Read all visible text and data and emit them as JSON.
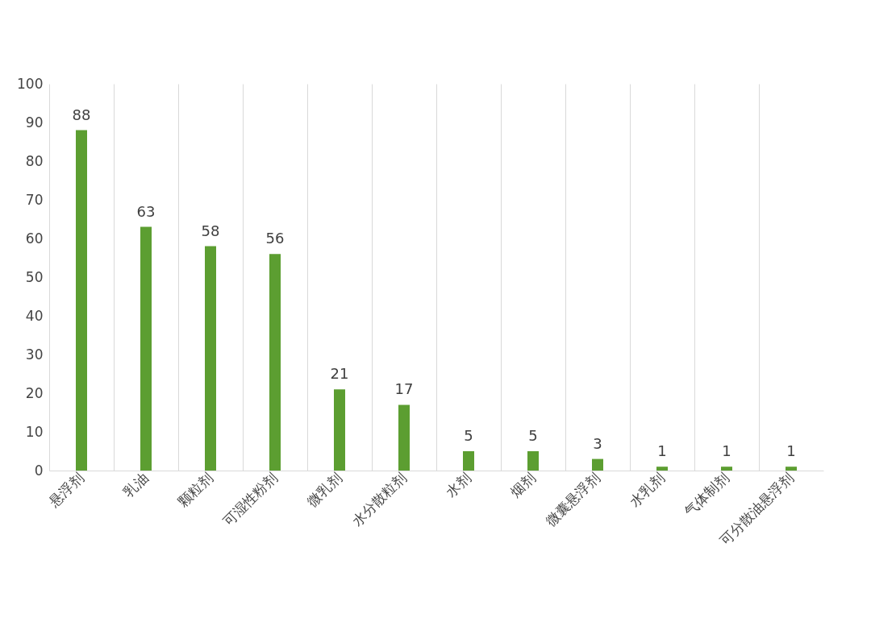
{
  "chart_data": {
    "type": "bar",
    "categories": [
      "悬浮剂",
      "乳油",
      "颗粒剂",
      "可湿性粉剂",
      "微乳剂",
      "水分散粒剂",
      "水剂",
      "烟剂",
      "微囊悬浮剂",
      "水乳剂",
      "气体制剂",
      "可分散油悬浮剂"
    ],
    "values": [
      88,
      63,
      58,
      56,
      21,
      17,
      5,
      5,
      3,
      1,
      1,
      1
    ],
    "color": "#5c9e31",
    "ylim": [
      0,
      100
    ],
    "yticks": [
      0,
      10,
      20,
      30,
      40,
      50,
      60,
      70,
      80,
      90,
      100
    ],
    "grid": "x",
    "data_labels": true
  }
}
